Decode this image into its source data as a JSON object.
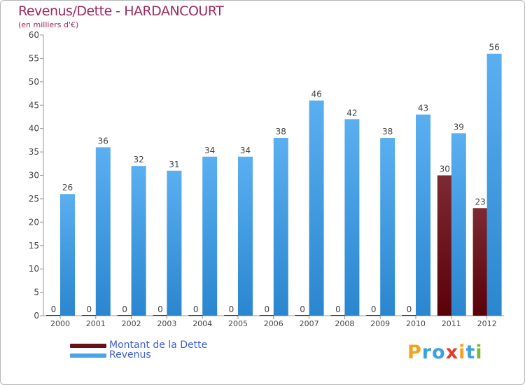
{
  "title": "Revenus/Dette - HARDANCOURT",
  "subtitle": "(en milliers d'€)",
  "chart_data": {
    "type": "bar",
    "title": "Revenus/Dette - HARDANCOURT",
    "subtitle": "(en milliers d'€)",
    "xlabel": "",
    "ylabel": "",
    "ylim": [
      0,
      60
    ],
    "yticks": [
      0,
      5,
      10,
      15,
      20,
      25,
      30,
      35,
      40,
      45,
      50,
      55,
      60
    ],
    "grid": false,
    "legend_position": "bottom-left",
    "categories": [
      "2000",
      "2001",
      "2002",
      "2003",
      "2004",
      "2005",
      "2006",
      "2007",
      "2008",
      "2009",
      "2010",
      "2011",
      "2012"
    ],
    "series": [
      {
        "name": "Montant de la Dette",
        "color": "#6b0f16",
        "values": [
          0,
          0,
          0,
          0,
          0,
          0,
          0,
          0,
          0,
          0,
          0,
          30,
          23
        ]
      },
      {
        "name": "Revenus",
        "color": "#4aa3e6",
        "values": [
          26,
          36,
          32,
          31,
          34,
          34,
          38,
          46,
          42,
          38,
          43,
          39,
          56
        ]
      }
    ]
  },
  "legend": {
    "debt_label": "Montant de la Dette",
    "revenue_label": "Revenus",
    "debt_color": "#6b0f16",
    "revenue_color": "#4aa3e6"
  },
  "logo": {
    "letters": [
      "P",
      "r",
      "o",
      "x",
      "i",
      "t",
      "i"
    ],
    "colors": [
      "#f4a11e",
      "#3aa0de",
      "#3aa0de",
      "#e23b2b",
      "#f4a11e",
      "#3aa0de",
      "#7cb82f"
    ]
  }
}
